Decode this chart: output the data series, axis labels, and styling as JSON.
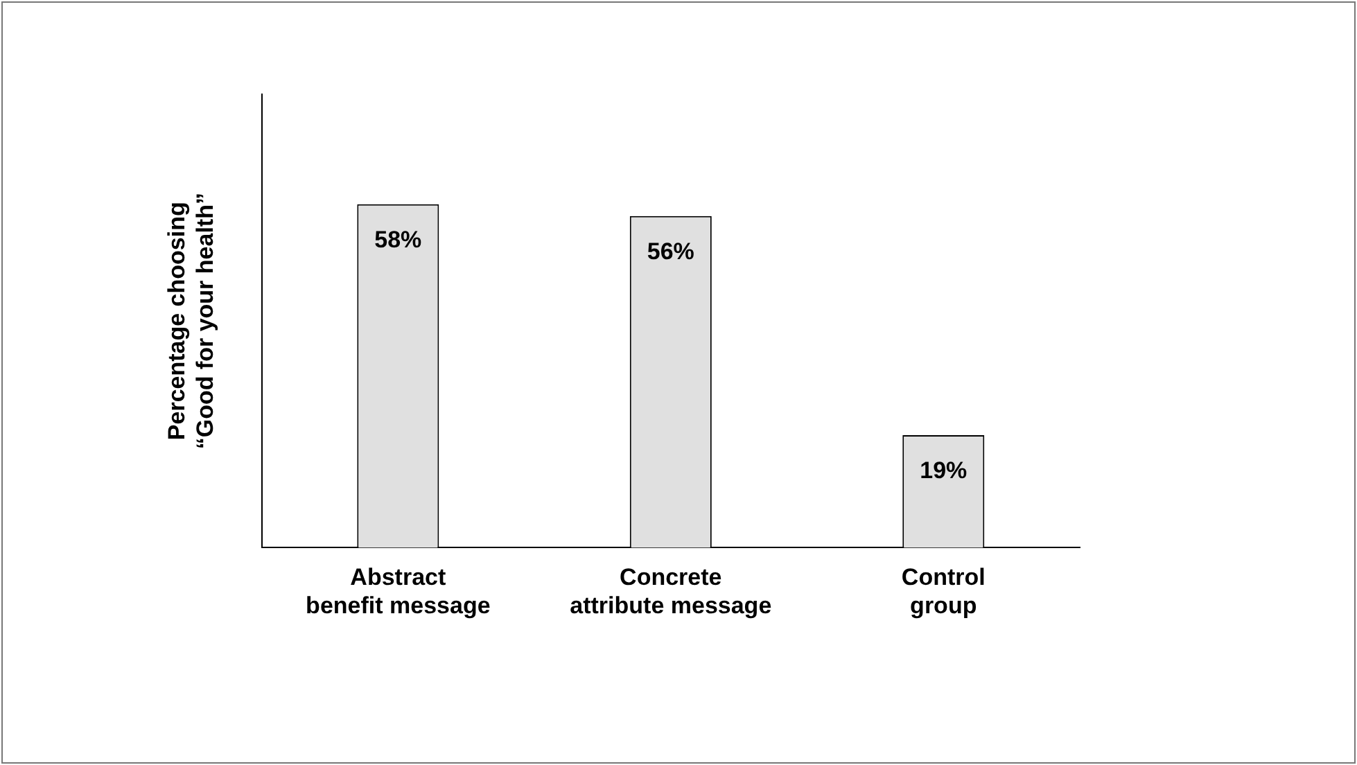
{
  "chart_data": {
    "type": "bar",
    "ylabel": "Percentage choosing “Good for your health”",
    "categories": [
      "Abstract benefit message",
      "Concrete attribute message",
      "Control group"
    ],
    "values": [
      58,
      56,
      19
    ],
    "color": "#e0e0e0",
    "value_labels": [
      "58%",
      "56%",
      "19%"
    ],
    "grid": false,
    "legend": false
  }
}
